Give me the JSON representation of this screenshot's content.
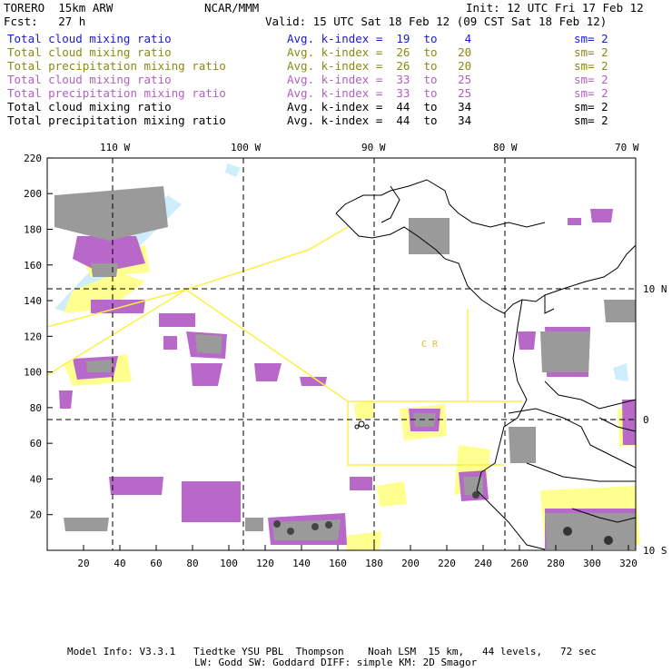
{
  "header": {
    "left1": "TORERO  15km ARW",
    "center1": "NCAR/MMM",
    "right1": "Init: 12 UTC Fri 17 Feb 12",
    "left2": "Fcst:   27 h",
    "right2": "Valid: 15 UTC Sat 18 Feb 12 (09 CST Sat 18 Feb 12)"
  },
  "legend": [
    {
      "field": "Total cloud mixing ratio",
      "index": "Avg. k-index =  19  to    4",
      "sm": "sm= 2",
      "color": "#1a1acc"
    },
    {
      "field": "Total cloud mixing ratio",
      "index": "Avg. k-index =  26  to   20",
      "sm": "sm= 2",
      "color": "#8a8a10"
    },
    {
      "field": "Total precipitation mixing ratio",
      "index": "Avg. k-index =  26  to   20",
      "sm": "sm= 2",
      "color": "#8a8a10"
    },
    {
      "field": "Total cloud mixing ratio",
      "index": "Avg. k-index =  33  to   25",
      "sm": "sm= 2",
      "color": "#b060c0"
    },
    {
      "field": "Total precipitation mixing ratio",
      "index": "Avg. k-index =  33  to   25",
      "sm": "sm= 2",
      "color": "#b060c0"
    },
    {
      "field": "Total cloud mixing ratio",
      "index": "Avg. k-index =  44  to   34",
      "sm": "sm= 2",
      "color": "#000000"
    },
    {
      "field": "Total precipitation mixing ratio",
      "index": "Avg. k-index =  44  to   34",
      "sm": "sm= 2",
      "color": "#000000"
    }
  ],
  "map": {
    "x_ticks": [
      "20",
      "40",
      "60",
      "80",
      "100",
      "120",
      "140",
      "160",
      "180",
      "200",
      "220",
      "240",
      "260",
      "280",
      "300",
      "320"
    ],
    "y_ticks": [
      "20",
      "40",
      "60",
      "80",
      "100",
      "120",
      "140",
      "160",
      "180",
      "200",
      "220"
    ],
    "lon_labels": [
      "110 W",
      "100 W",
      "90 W",
      "80 W",
      "70 W"
    ],
    "lat_labels": [
      "10 N",
      "0",
      "10 S"
    ],
    "region_label": "C  R",
    "colors": {
      "light_blue": "#cfeefc",
      "yellow": "#ffff90",
      "violet": "#b868c8",
      "gray": "#9a9a9a",
      "dark": "#444444",
      "boundary": "#ffee44"
    }
  },
  "footer": {
    "line1": "Model Info: V3.3.1   Tiedtke YSU PBL  Thompson    Noah LSM  15 km,   44 levels,   72 sec",
    "line2": "LW: Godd SW: Goddard DIFF: simple KM: 2D Smagor"
  }
}
